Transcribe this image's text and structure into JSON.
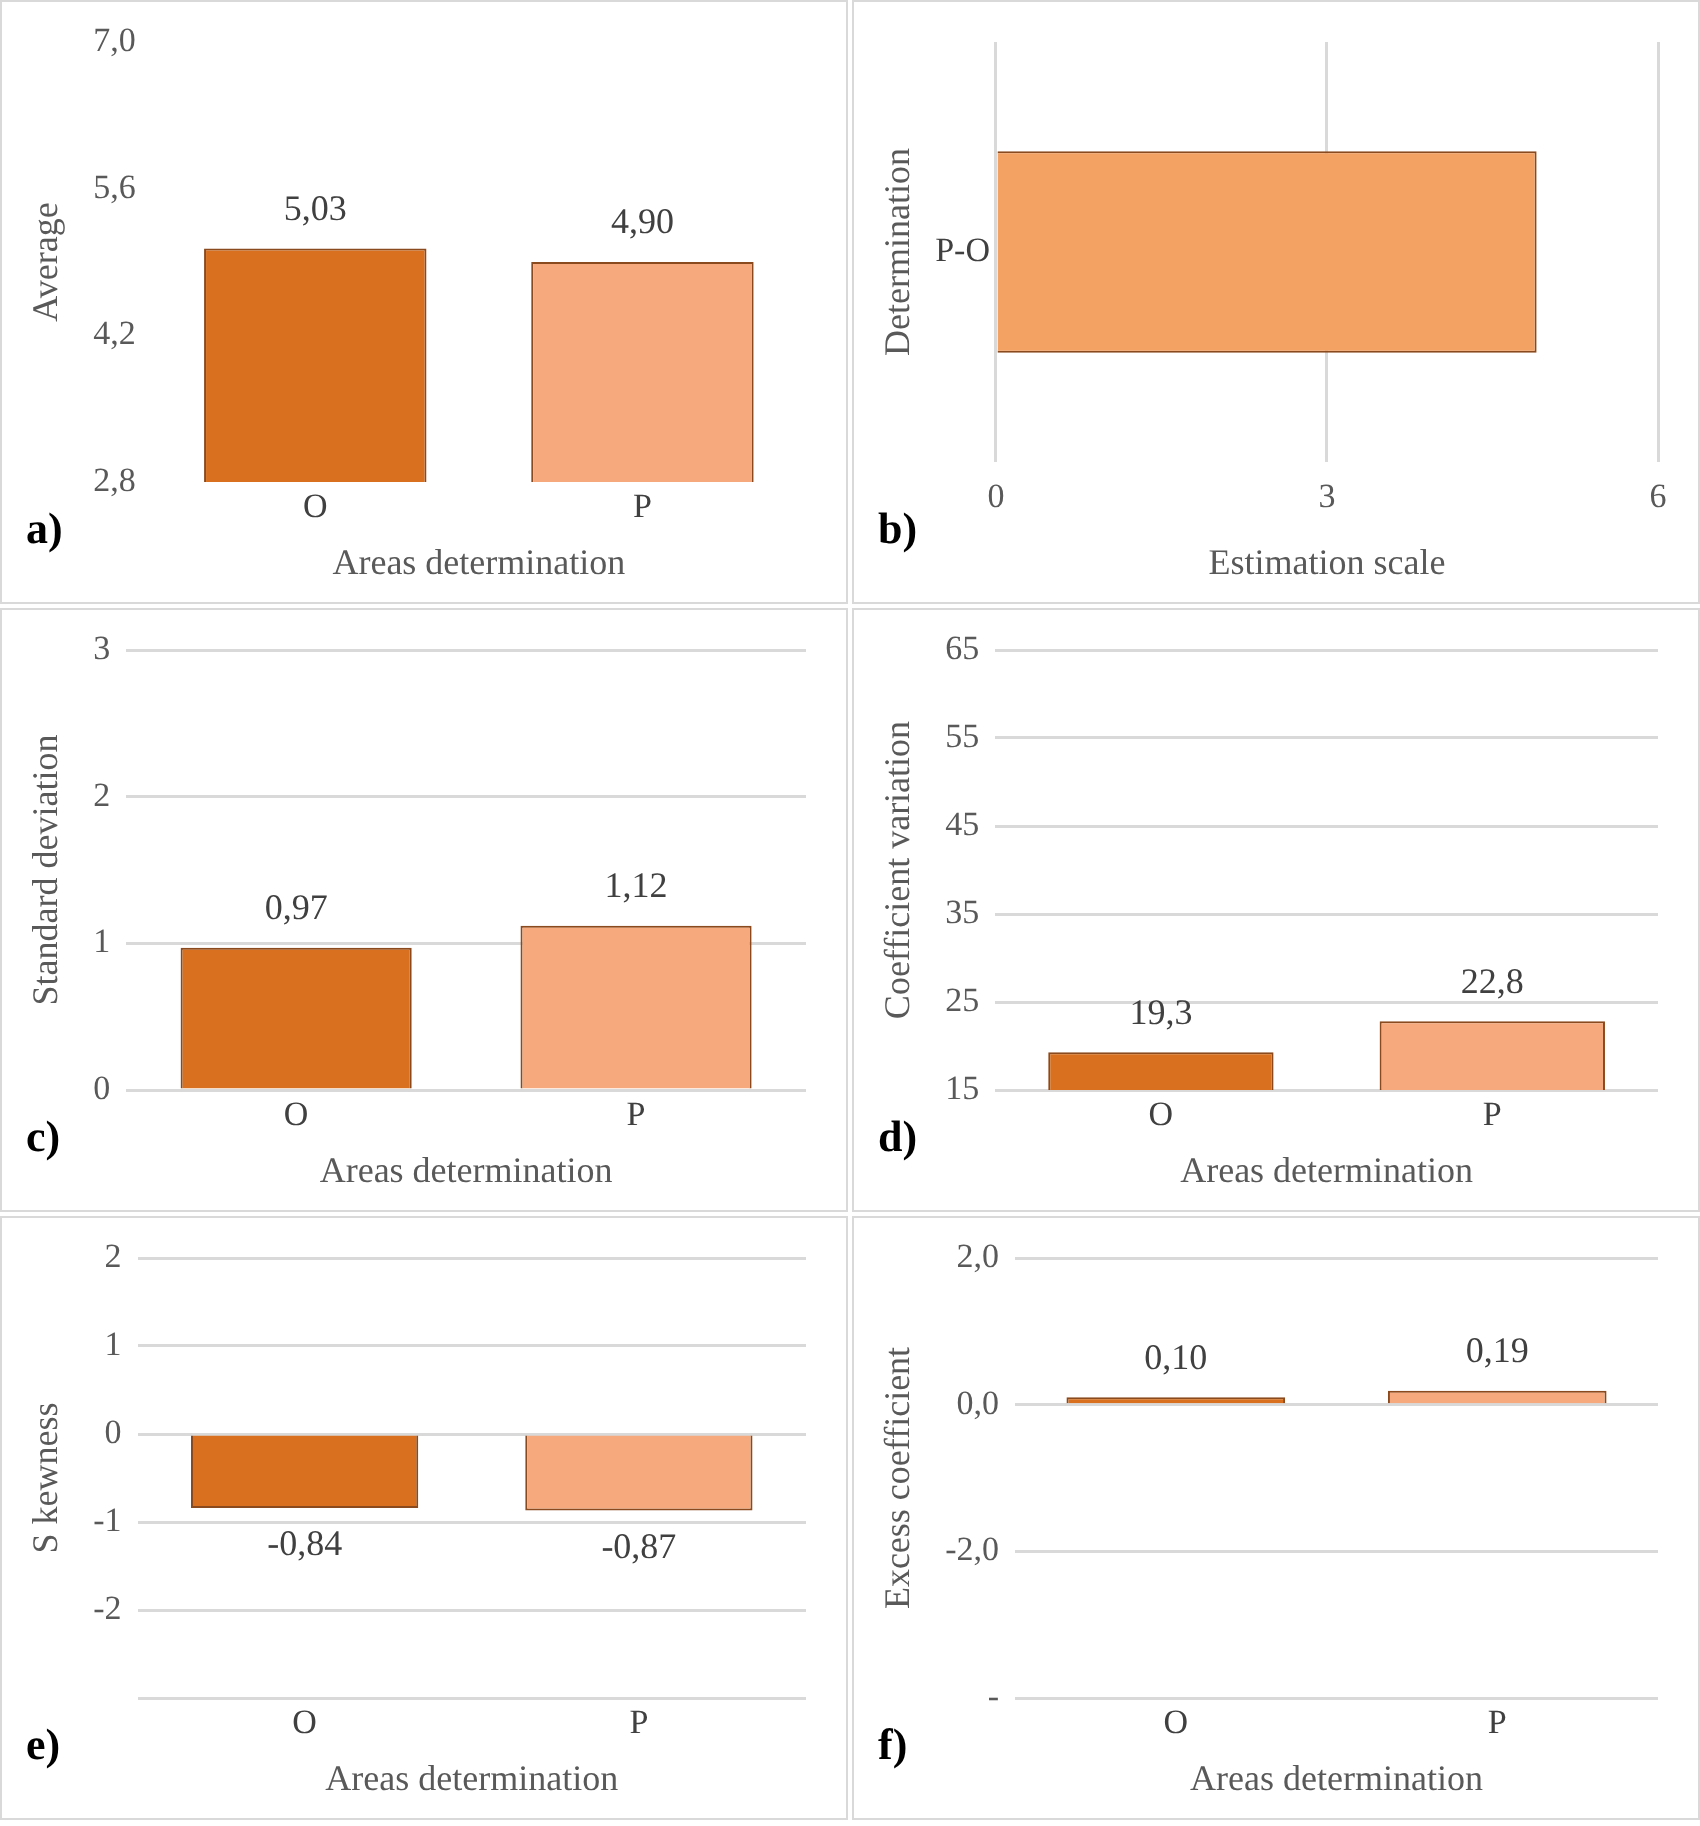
{
  "chart_data": [
    {
      "type": "bar",
      "categories": [
        "O",
        "P"
      ],
      "values": [
        5.03,
        4.9
      ],
      "colors": [
        "#d9701f",
        "#f5a97c"
      ],
      "value_labels": [
        "5,03",
        "4,90"
      ],
      "ylim": [
        2.8,
        7
      ],
      "yticks": [
        {
          "value": 2.8,
          "label": "2,8"
        },
        {
          "value": 4.2,
          "label": "4,2"
        },
        {
          "value": 5.6,
          "label": "5,6"
        },
        {
          "value": 7,
          "label": "7,0"
        }
      ],
      "xlabel": "Areas determination",
      "ylabel": "Average",
      "annotations": [
        "a)"
      ]
    },
    {
      "type": "bar",
      "orientation": "horizontal",
      "categories": [
        "P-O"
      ],
      "values": [
        4.9
      ],
      "colors": [
        "#f4a264"
      ],
      "xlim": [
        0,
        6
      ],
      "xticks": [
        0,
        3,
        6
      ],
      "grid": "x",
      "xlabel": "Estimation scale",
      "ylabel": "Determination",
      "annotations": [
        "b)"
      ]
    },
    {
      "type": "bar",
      "categories": [
        "O",
        "P"
      ],
      "values": [
        0.97,
        1.12
      ],
      "colors": [
        "#d9701f",
        "#f5a97c"
      ],
      "value_labels": [
        "0,97",
        "1,12"
      ],
      "ylim": [
        0,
        3
      ],
      "yticks": [
        0,
        1,
        2,
        3
      ],
      "grid": "y",
      "xlabel": "Areas determination",
      "ylabel": "Standard deviation",
      "annotations": [
        "c)"
      ]
    },
    {
      "type": "bar",
      "categories": [
        "O",
        "P"
      ],
      "values": [
        19.3,
        22.8
      ],
      "colors": [
        "#d9701f",
        "#f5a97c"
      ],
      "value_labels": [
        "19,3",
        "22,8"
      ],
      "ylim": [
        15,
        65
      ],
      "yticks": [
        15,
        25,
        35,
        45,
        55,
        65
      ],
      "grid": "y",
      "xlabel": "Areas determination",
      "ylabel": "Coefficient variation",
      "annotations": [
        "d)"
      ]
    },
    {
      "type": "bar",
      "categories": [
        "O",
        "P"
      ],
      "values": [
        -0.84,
        -0.87
      ],
      "colors": [
        "#d9701f",
        "#f5a97c"
      ],
      "value_labels": [
        "-0,84",
        "-0,87"
      ],
      "ylim": [
        -3,
        2
      ],
      "yticks": [
        {
          "value": -3,
          "label": null
        },
        -2,
        -1,
        0,
        1,
        2
      ],
      "grid": "y",
      "xlabel": "Areas determination",
      "ylabel": "S kewness",
      "annotations": [
        "e)"
      ]
    },
    {
      "type": "bar",
      "categories": [
        "O",
        "P"
      ],
      "values": [
        0.1,
        0.19
      ],
      "colors": [
        "#d9701f",
        "#f5a97c"
      ],
      "value_labels": [
        "0,10",
        "0,19"
      ],
      "ylim": [
        -4,
        2
      ],
      "yticks": [
        {
          "value": -4,
          "label": "-"
        },
        {
          "value": -2,
          "label": "-2,0"
        },
        {
          "value": 0,
          "label": "0,0"
        },
        {
          "value": 2,
          "label": "2,0"
        }
      ],
      "grid": "y",
      "xlabel": "Areas determination",
      "ylabel": "Excess coefficient",
      "annotations": [
        "f)"
      ]
    }
  ]
}
